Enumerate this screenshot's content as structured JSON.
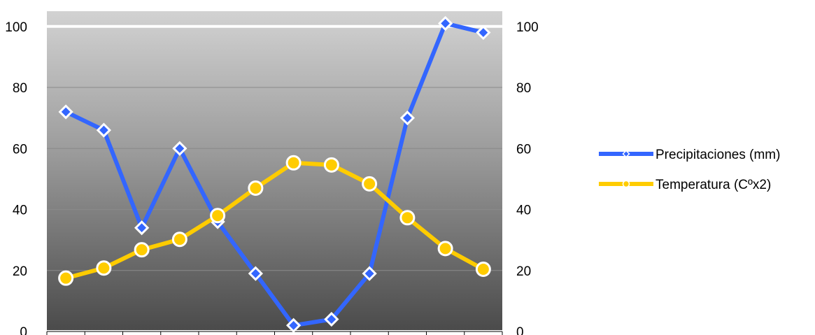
{
  "chart_data": {
    "type": "line",
    "categories": [
      "",
      "",
      "",
      "",
      "",
      "",
      "",
      "",
      "",
      "",
      "",
      ""
    ],
    "series": [
      {
        "name": "Precipitaciones (mm)",
        "color": "#3366ff",
        "marker": "diamond",
        "values": [
          72,
          66,
          34,
          60,
          36,
          19,
          2,
          4,
          19,
          70,
          101,
          98
        ]
      },
      {
        "name": "Temperatura (Cºx2)",
        "color": "#ffcc00",
        "marker": "circle",
        "values": [
          17.5,
          20.8,
          26.8,
          30.2,
          38,
          47,
          55.3,
          54.6,
          48.4,
          37.3,
          27.2,
          20.4
        ]
      }
    ],
    "y_left": {
      "ylim": [
        0,
        105
      ],
      "ticks": [
        "0",
        "20",
        "40",
        "60",
        "80",
        "100"
      ]
    },
    "y_right": {
      "ylim": [
        0,
        105
      ],
      "ticks": [
        "0",
        "20",
        "40",
        "60",
        "80",
        "100"
      ]
    },
    "grid": true,
    "legend_position": "right",
    "title": "",
    "xlabel": "",
    "ylabel": ""
  }
}
